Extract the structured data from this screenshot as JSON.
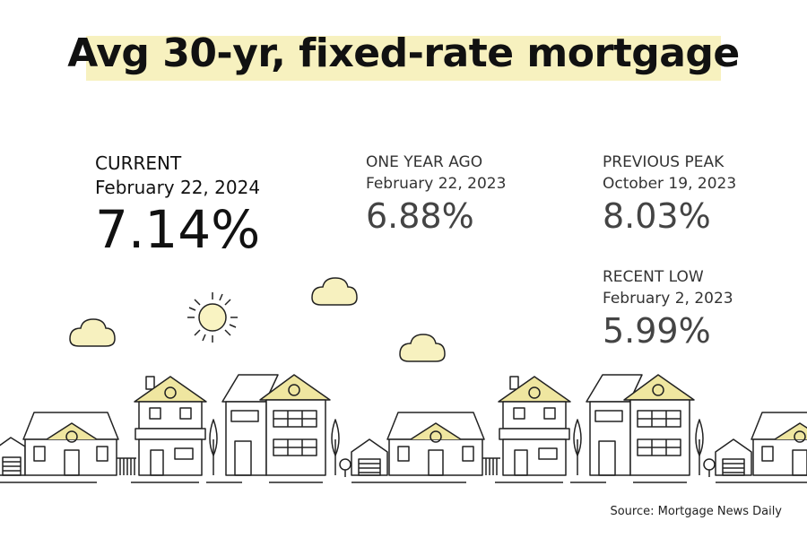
{
  "title": "Avg 30-yr, fixed-rate mortgage",
  "stats": {
    "current": {
      "label": "CURRENT",
      "date": "February 22, 2024",
      "value": "7.14%"
    },
    "one_year_ago": {
      "label": "ONE YEAR AGO",
      "date": "February 22, 2023",
      "value": "6.88%"
    },
    "previous_peak": {
      "label": "PREVIOUS PEAK",
      "date": "October 19, 2023",
      "value": "8.03%"
    },
    "recent_low": {
      "label": "RECENT LOW",
      "date": "February 2, 2023",
      "value": "5.99%"
    }
  },
  "source": "Source: Mortgage News Daily",
  "colors": {
    "highlight": "#f7f1bf",
    "cloud_fill": "#f7f1bf",
    "sun_fill": "#f9f3c2",
    "roof_accent": "#efe6a0",
    "line": "#222222"
  },
  "icons": [
    "sun-icon",
    "cloud-icon",
    "house-icon",
    "tree-icon"
  ]
}
